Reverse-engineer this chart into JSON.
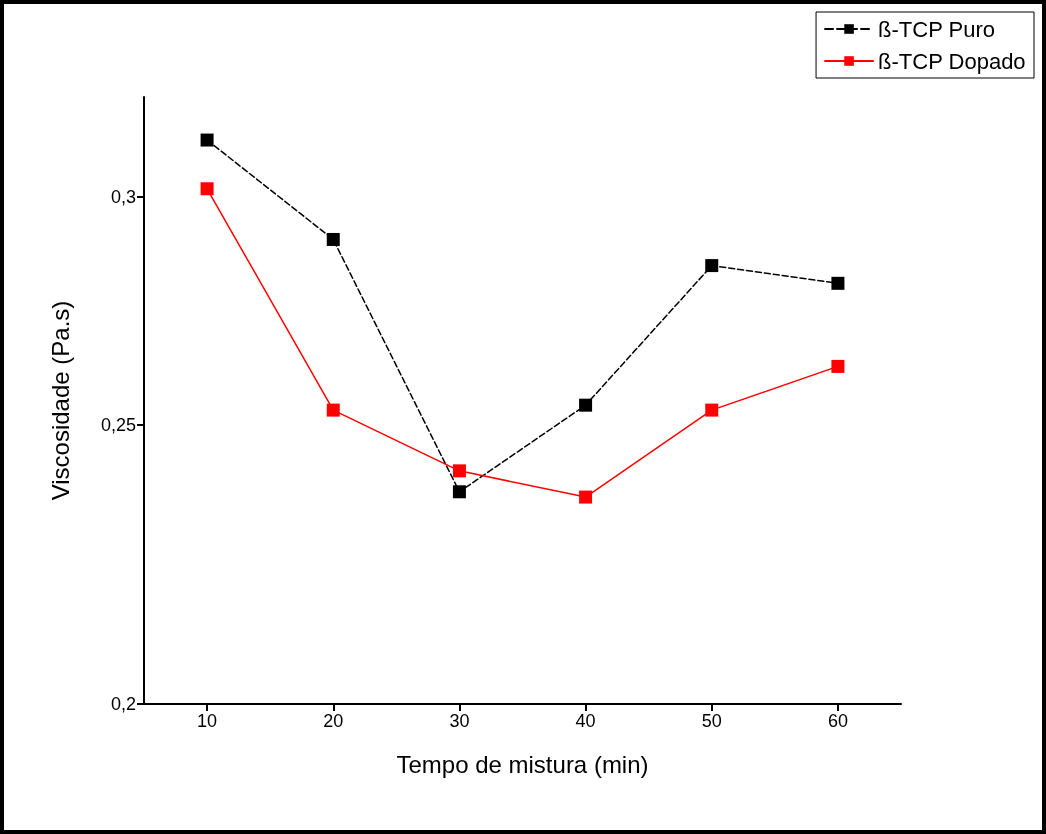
{
  "chart_data": {
    "type": "line",
    "xlabel": "Tempo de mistura (min)",
    "ylabel": "Viscosidade (Pa.s)",
    "x": [
      10,
      20,
      30,
      40,
      50,
      60
    ],
    "series": [
      {
        "name": "ß-TCP Puro",
        "color": "#000000",
        "line_style": "dashed",
        "values": [
          0.314,
          0.29,
          0.237,
          0.254,
          0.284,
          0.28
        ]
      },
      {
        "name": "ß-TCP Dopado",
        "color": "#ff0000",
        "line_style": "solid",
        "values": [
          0.302,
          0.253,
          0.241,
          0.236,
          0.253,
          0.262
        ]
      }
    ],
    "xlim": [
      5,
      65
    ],
    "xticks": [
      10,
      20,
      30,
      40,
      50,
      60
    ],
    "ylim": [
      0.2,
      0.325
    ],
    "yticks": [
      {
        "value": 0.2,
        "label": "0,2"
      },
      {
        "value": 0.25,
        "label": "0,25"
      },
      {
        "value": 0.3,
        "label": "0,3"
      }
    ],
    "log": "y",
    "grid": false,
    "legend": "top right",
    "marker": "square"
  }
}
